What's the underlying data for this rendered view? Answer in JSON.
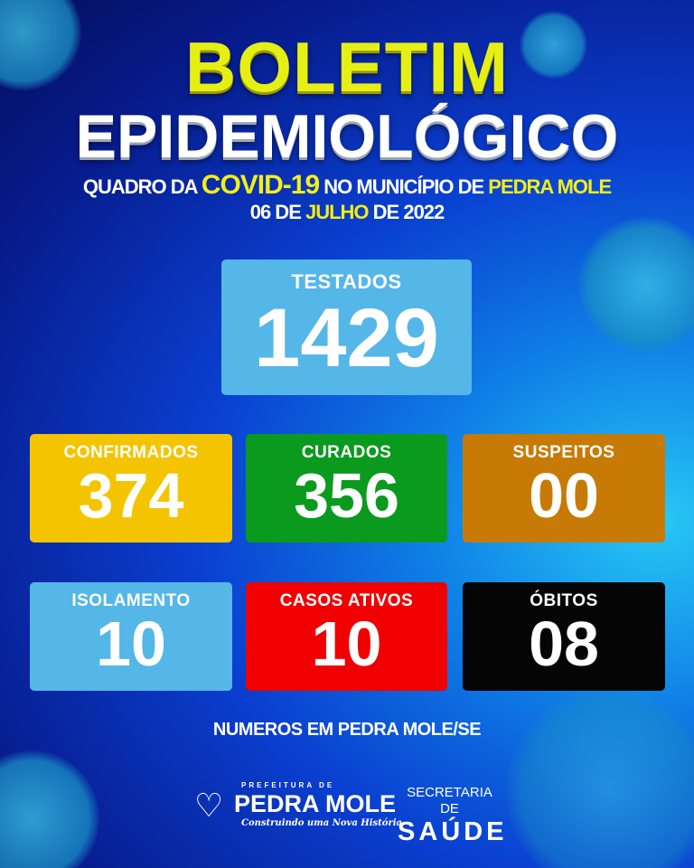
{
  "header": {
    "title_line1": "BOLETIM",
    "title_line2": "EPIDEMIOLÓGICO",
    "subtitle": {
      "p1": "QUADRO DA ",
      "p2": "COVID-19",
      "p3": " NO MUNICÍPIO DE ",
      "p4": "PEDRA MOLE"
    },
    "date": {
      "p1": "06 DE ",
      "p2": "JULHO",
      "p3": " DE 2022"
    }
  },
  "stats": {
    "testados": {
      "label": "TESTADOS",
      "value": "1429",
      "color": "#55b6e8"
    },
    "confirmados": {
      "label": "CONFIRMADOS",
      "value": "374",
      "color": "#f5c400"
    },
    "curados": {
      "label": "CURADOS",
      "value": "356",
      "color": "#0a9a1e"
    },
    "suspeitos": {
      "label": "SUSPEITOS",
      "value": "00",
      "color": "#c77a05"
    },
    "isolamento": {
      "label": "ISOLAMENTO",
      "value": "10",
      "color": "#55b6e8"
    },
    "casos_ativos": {
      "label": "CASOS ATIVOS",
      "value": "10",
      "color": "#f00000"
    },
    "obitos": {
      "label": "ÓBITOS",
      "value": "08",
      "color": "#050505"
    }
  },
  "footer": {
    "text": "NUMEROS EM PEDRA MOLE/SE"
  },
  "logos": {
    "prefeitura_small": "PREFEITURA DE",
    "prefeitura_name": "PEDRA MOLE",
    "prefeitura_tagline": "Construindo uma Nova História",
    "secretaria_line1": "SECRETARIA DE",
    "secretaria_line2": "SAÚDE"
  }
}
